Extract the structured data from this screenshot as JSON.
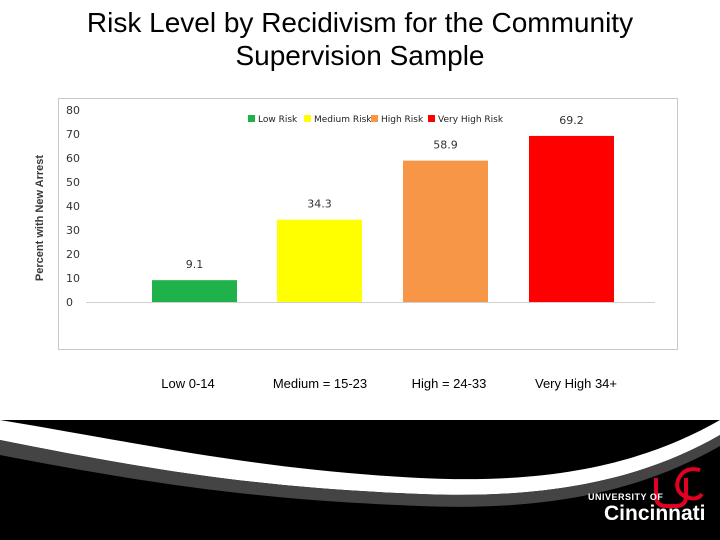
{
  "title": "Risk Level by Recidivism for the Community Supervision Sample",
  "chart_data": {
    "type": "bar",
    "categories": [
      "Low Risk",
      "Medium Risk",
      "High Risk",
      "Very High Risk"
    ],
    "values": [
      9.1,
      34.3,
      58.9,
      69.2
    ],
    "value_labels": [
      "9.1",
      "34.3",
      "58.9",
      "69.2"
    ],
    "colors": [
      "#1fb24a",
      "#ffff00",
      "#f79646",
      "#ff0000"
    ],
    "ylabel": "Percent with New Arrest",
    "xlabel": "",
    "ylim": [
      0,
      80
    ],
    "yticks": [
      "0",
      "10",
      "20",
      "30",
      "40",
      "50",
      "60",
      "70",
      "80"
    ],
    "legend_position": "top-right",
    "grid": false
  },
  "category_labels": [
    "Low 0-14",
    "Medium = 15-23",
    "High = 24-33",
    "Very High 34+"
  ],
  "logo": {
    "line1": "UNIVERSITY OF",
    "line2": "Cincinnati",
    "mark_color": "#e00122"
  }
}
